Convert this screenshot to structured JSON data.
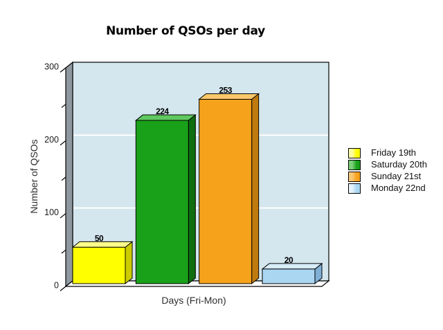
{
  "chart_data": {
    "type": "bar",
    "style": "3d-bar",
    "title": "Number of QSOs per day",
    "categories": [
      "Friday 19th",
      "Saturday 20th",
      "Sunday 21st",
      "Monday 22nd"
    ],
    "values": [
      50,
      224,
      253,
      20
    ],
    "xlabel": "Days (Fri-Mon)",
    "ylabel": "Number of QSOs",
    "ylim": [
      0,
      300
    ],
    "yticks": [
      0,
      100,
      200,
      300
    ],
    "minor_yticks": [
      50,
      150,
      250
    ],
    "grid": true,
    "legend_position": "right",
    "colors": {
      "plot_bg": "#d4e6ee",
      "wall": "#8f989e",
      "floor": "#ffffff",
      "grid": "#ffffff",
      "axis": "#000000",
      "bars": [
        {
          "front": "#ffff00",
          "top": "#ffff8a",
          "side": "#cccc00",
          "light": "#ffffa6"
        },
        {
          "front": "#19a119",
          "top": "#5fc85f",
          "side": "#0f6e0f",
          "light": "#7ccf7c"
        },
        {
          "front": "#f7a21b",
          "top": "#fbc96b",
          "side": "#c07a0e",
          "light": "#f8c978"
        },
        {
          "front": "#aad6f2",
          "top": "#d8edfa",
          "side": "#7fafd4",
          "light": "#e6f3fb"
        }
      ]
    }
  }
}
